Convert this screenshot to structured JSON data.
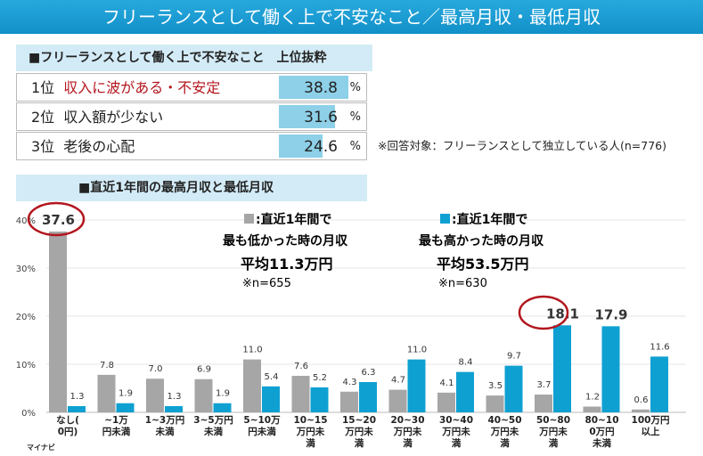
{
  "title": "フリーランスとして働く上で不安なこと／最高月収・最低月収",
  "ranking": {
    "header": "■フリーランスとして働く上で不安なこと　上位抜粋",
    "rows": [
      {
        "rank": "1位",
        "item": "収入に波がある・不安定",
        "value": "38.8",
        "pct": "%",
        "highlight": true
      },
      {
        "rank": "2位",
        "item": "収入額が少ない",
        "value": "31.6",
        "pct": "%"
      },
      {
        "rank": "3位",
        "item": "老後の心配",
        "value": "24.6",
        "pct": "%"
      }
    ],
    "note": "※回答対象：フリーランスとして独立している人(n=776)"
  },
  "chart_header": "■直近1年間の最高月収と最低月収",
  "logo": "マイナビ",
  "colors": {
    "gray": "#a6a6a6",
    "blue": "#0fa0d2",
    "highlight_red": "#b3161e",
    "title_blue": "#1a9fd6"
  },
  "chart_data": {
    "type": "bar",
    "ylim": [
      0,
      40
    ],
    "yticks": [
      "0%",
      "10%",
      "20%",
      "30%",
      "40%"
    ],
    "categories": [
      "なし(0円)",
      "~1万円未満",
      "1~3万円未満",
      "3~5万円未満",
      "5~10万円未満",
      "10~15万円未満",
      "15~20万円未満",
      "20~30万円未満",
      "30~40万円未満",
      "40~50万円未満",
      "50~80万円未満",
      "80~100万円未満",
      "100万円以上"
    ],
    "series": [
      {
        "name": "■:直近1年間で最も低かった時の月収",
        "avg": "平均11.3万円",
        "n": "※n=655",
        "values": [
          37.6,
          7.8,
          7.0,
          6.9,
          11.0,
          7.6,
          4.3,
          4.7,
          4.1,
          3.5,
          3.7,
          1.2,
          0.6
        ]
      },
      {
        "name": "■:直近1年間で最も高かった時の月収",
        "avg": "平均53.5万円",
        "n": "※n=630",
        "values": [
          1.3,
          1.9,
          1.3,
          1.9,
          5.4,
          5.2,
          6.3,
          11.0,
          8.4,
          9.7,
          18.1,
          17.9,
          11.6
        ]
      }
    ],
    "highlighted": [
      "37.6",
      "18.1"
    ],
    "grid": true
  }
}
